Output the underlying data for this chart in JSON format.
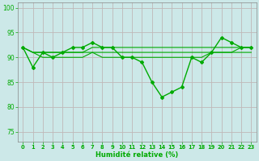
{
  "title": "",
  "xlabel": "Humidité relative (%)",
  "ylabel": "",
  "background_color": "#cce8e8",
  "grid_color": "#bbcccc",
  "line_color": "#00aa00",
  "xlim": [
    -0.5,
    23.5
  ],
  "ylim": [
    73,
    101
  ],
  "yticks": [
    75,
    80,
    85,
    90,
    95,
    100
  ],
  "xticks": [
    0,
    1,
    2,
    3,
    4,
    5,
    6,
    7,
    8,
    9,
    10,
    11,
    12,
    13,
    14,
    15,
    16,
    17,
    18,
    19,
    20,
    21,
    22,
    23
  ],
  "series": [
    [
      92,
      88,
      91,
      90,
      91,
      92,
      92,
      93,
      92,
      92,
      90,
      90,
      89,
      85,
      82,
      83,
      84,
      90,
      89,
      91,
      94,
      93,
      92,
      92
    ],
    [
      92,
      91,
      91,
      91,
      91,
      91,
      91,
      92,
      92,
      92,
      92,
      92,
      92,
      92,
      92,
      92,
      92,
      92,
      92,
      92,
      92,
      92,
      92,
      92
    ],
    [
      92,
      91,
      91,
      91,
      91,
      91,
      91,
      91,
      91,
      91,
      91,
      91,
      91,
      91,
      91,
      91,
      91,
      91,
      91,
      91,
      91,
      91,
      91,
      91
    ],
    [
      92,
      91,
      90,
      90,
      90,
      90,
      90,
      91,
      90,
      90,
      90,
      90,
      90,
      90,
      90,
      90,
      90,
      90,
      90,
      91,
      91,
      91,
      92,
      92
    ]
  ],
  "xlabel_fontsize": 6.0,
  "ytick_fontsize": 5.5,
  "xtick_fontsize": 4.8
}
